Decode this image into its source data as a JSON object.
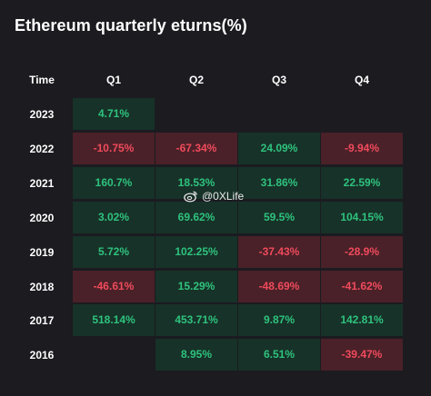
{
  "chart_data": {
    "type": "table",
    "title": "Ethereum quarterly eturns(%)",
    "row_header": "Time",
    "columns": [
      "Q1",
      "Q2",
      "Q3",
      "Q4"
    ],
    "rows": [
      {
        "year": "2023",
        "values": [
          "4.71%",
          null,
          null,
          null
        ],
        "signs": [
          "pos",
          null,
          null,
          null
        ]
      },
      {
        "year": "2022",
        "values": [
          "-10.75%",
          "-67.34%",
          "24.09%",
          "-9.94%"
        ],
        "signs": [
          "neg",
          "neg",
          "pos",
          "neg"
        ]
      },
      {
        "year": "2021",
        "values": [
          "160.7%",
          "18.53%",
          "31.86%",
          "22.59%"
        ],
        "signs": [
          "pos",
          "pos",
          "pos",
          "pos"
        ]
      },
      {
        "year": "2020",
        "values": [
          "3.02%",
          "69.62%",
          "59.5%",
          "104.15%"
        ],
        "signs": [
          "pos",
          "pos",
          "pos",
          "pos"
        ]
      },
      {
        "year": "2019",
        "values": [
          "5.72%",
          "102.25%",
          "-37.43%",
          "-28.9%"
        ],
        "signs": [
          "pos",
          "pos",
          "neg",
          "neg"
        ]
      },
      {
        "year": "2018",
        "values": [
          "-46.61%",
          "15.29%",
          "-48.69%",
          "-41.62%"
        ],
        "signs": [
          "neg",
          "pos",
          "neg",
          "neg"
        ]
      },
      {
        "year": "2017",
        "values": [
          "518.14%",
          "453.71%",
          "9.87%",
          "142.81%"
        ],
        "signs": [
          "pos",
          "pos",
          "pos",
          "pos"
        ]
      },
      {
        "year": "2016",
        "values": [
          null,
          "8.95%",
          "6.51%",
          "-39.47%"
        ],
        "signs": [
          null,
          "pos",
          "pos",
          "neg"
        ]
      }
    ],
    "colors": {
      "positive_bg": "#173228",
      "positive_text": "#2ec27e",
      "negative_bg": "#4a2128",
      "negative_text": "#f04a5c",
      "background": "#1b1b20"
    }
  },
  "watermark": {
    "text": "@0XLife",
    "icon": "weibo-icon"
  }
}
